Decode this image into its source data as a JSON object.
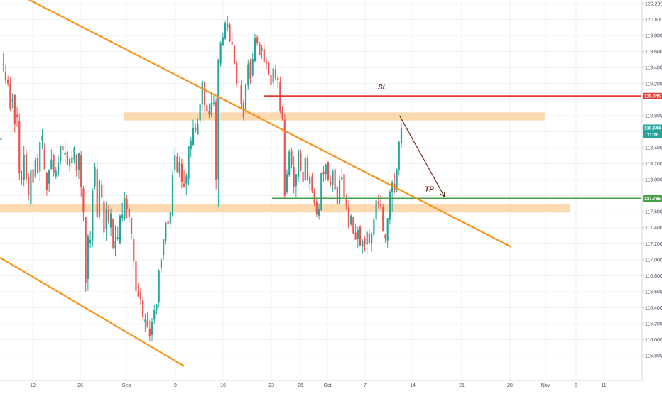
{
  "colors": {
    "background": "#ffffff",
    "grid": "#eef1f5",
    "axis_text": "#4a4f5a",
    "up_candle": "#26a69a",
    "down_candle": "#ef5350",
    "trendline": "#f7931a",
    "zone": "#fcd3a3",
    "sl_line": "#e53935",
    "tp_line": "#43a047",
    "last_price": "#26a69a",
    "arrow": "#6d2b20"
  },
  "chart_data": {
    "type": "candlestick",
    "y_axis": {
      "range": [
        115.7,
        120.2
      ],
      "ticks": [
        "115.800",
        "116.000",
        "116.200",
        "116.400",
        "116.600",
        "116.800",
        "117.000",
        "117.200",
        "117.400",
        "117.600",
        "117.800",
        "118.000",
        "118.200",
        "118.400",
        "118.600",
        "118.800",
        "119.000",
        "119.200",
        "119.400",
        "119.600",
        "119.800",
        "120.000",
        "120.200"
      ]
    },
    "x_axis": {
      "ticks": [
        "19",
        "26",
        "Sep",
        "9",
        "16",
        "23",
        "26",
        "Oct",
        "7",
        "14",
        "21",
        "28",
        "Nov",
        "6",
        "11"
      ]
    },
    "last_price": {
      "value": 118.644,
      "label": "118.644",
      "countdown": "11:28"
    },
    "stop_loss": {
      "value": 119.045,
      "label": "119.045",
      "text": "SL"
    },
    "take_profit": {
      "value": 117.765,
      "label": "117.765",
      "text": "TP"
    },
    "zones": [
      {
        "low": 118.74,
        "high": 118.84
      },
      {
        "low": 117.59,
        "high": 117.69
      }
    ],
    "trendlines": [
      {
        "from": {
          "bar": -20,
          "price": 120.72
        },
        "to": {
          "bar": 223,
          "price": 117.16
        }
      },
      {
        "from": {
          "bar": -6,
          "price": 117.12
        },
        "to": {
          "bar": 80,
          "price": 115.67
        }
      }
    ],
    "projection": {
      "from": {
        "bar": 168,
        "price": 118.8
      },
      "to": {
        "bar": 183,
        "price": 117.76
      }
    },
    "ohlc": [
      [
        118.5,
        118.58,
        118.46,
        118.52
      ],
      [
        119.44,
        119.59,
        119.34,
        119.45
      ],
      [
        119.34,
        119.44,
        119.19,
        119.24
      ],
      [
        119.25,
        119.3,
        119.17,
        119.2
      ],
      [
        119.19,
        119.28,
        118.86,
        118.89
      ],
      [
        118.98,
        119.08,
        118.89,
        119.0
      ],
      [
        119.06,
        119.06,
        118.59,
        118.69
      ],
      [
        118.81,
        118.91,
        118.66,
        118.78
      ],
      [
        118.73,
        118.83,
        117.99,
        118.08
      ],
      [
        118.02,
        118.11,
        117.94,
        118.01
      ],
      [
        118.0,
        118.42,
        117.92,
        118.31
      ],
      [
        118.32,
        118.38,
        117.95,
        118.01
      ],
      [
        118.03,
        118.09,
        117.74,
        117.81
      ],
      [
        117.7,
        118.16,
        117.66,
        118.12
      ],
      [
        118.13,
        118.2,
        117.96,
        117.96
      ],
      [
        118.04,
        118.28,
        118.02,
        118.25
      ],
      [
        118.27,
        118.32,
        118.07,
        118.09
      ],
      [
        118.1,
        118.48,
        117.98,
        118.47
      ],
      [
        118.48,
        118.63,
        118.38,
        118.55
      ],
      [
        118.38,
        118.46,
        118.13,
        118.13
      ],
      [
        118.08,
        118.1,
        117.8,
        117.87
      ],
      [
        117.95,
        118.13,
        117.84,
        118.12
      ],
      [
        118.13,
        118.38,
        118.13,
        118.25
      ],
      [
        118.3,
        118.32,
        118.04,
        118.09
      ],
      [
        118.04,
        118.16,
        118.01,
        118.11
      ],
      [
        118.06,
        118.31,
        118.03,
        118.22
      ],
      [
        118.23,
        118.43,
        118.18,
        118.42
      ],
      [
        118.42,
        118.43,
        118.21,
        118.37
      ],
      [
        118.31,
        118.48,
        118.21,
        118.34
      ],
      [
        118.35,
        118.37,
        118.17,
        118.19
      ],
      [
        118.17,
        118.27,
        118.1,
        118.26
      ],
      [
        118.21,
        118.36,
        118.15,
        118.28
      ],
      [
        118.25,
        118.42,
        118.2,
        118.39
      ],
      [
        118.31,
        118.32,
        118.03,
        118.11
      ],
      [
        118.12,
        118.34,
        118.01,
        118.33
      ],
      [
        118.31,
        118.36,
        117.79,
        117.91
      ],
      [
        117.89,
        117.92,
        117.48,
        117.59
      ],
      [
        117.53,
        117.54,
        116.6,
        116.71
      ],
      [
        116.76,
        117.33,
        116.61,
        117.3
      ],
      [
        117.21,
        117.36,
        117.14,
        117.25
      ],
      [
        117.24,
        117.89,
        117.16,
        117.86
      ],
      [
        117.92,
        118.21,
        117.88,
        118.16
      ],
      [
        118.13,
        118.23,
        117.51,
        117.53
      ],
      [
        117.54,
        118.0,
        117.5,
        117.99
      ],
      [
        117.94,
        118.01,
        117.76,
        117.78
      ],
      [
        117.73,
        117.81,
        117.27,
        117.34
      ],
      [
        117.38,
        117.73,
        117.23,
        117.64
      ],
      [
        117.62,
        117.68,
        117.45,
        117.47
      ],
      [
        117.4,
        117.64,
        117.29,
        117.58
      ],
      [
        117.51,
        117.52,
        117.13,
        117.15
      ],
      [
        117.14,
        117.43,
        117.04,
        117.23
      ],
      [
        117.26,
        117.41,
        117.24,
        117.28
      ],
      [
        117.2,
        117.57,
        117.19,
        117.55
      ],
      [
        117.52,
        117.71,
        117.48,
        117.56
      ],
      [
        117.51,
        117.84,
        117.49,
        117.77
      ],
      [
        117.75,
        117.81,
        117.52,
        117.63
      ],
      [
        117.63,
        117.68,
        117.46,
        117.54
      ],
      [
        117.52,
        117.53,
        117.25,
        117.32
      ],
      [
        117.26,
        117.31,
        116.89,
        116.98
      ],
      [
        116.99,
        117.0,
        116.59,
        116.61
      ],
      [
        116.61,
        116.71,
        116.53,
        116.54
      ],
      [
        116.6,
        116.64,
        116.44,
        116.51
      ],
      [
        116.49,
        116.53,
        116.23,
        116.28
      ],
      [
        116.22,
        116.33,
        116.1,
        116.25
      ],
      [
        116.24,
        116.34,
        116.15,
        116.16
      ],
      [
        116.14,
        116.24,
        115.98,
        116.04
      ],
      [
        116.06,
        116.27,
        115.98,
        116.22
      ],
      [
        116.25,
        116.44,
        116.2,
        116.37
      ],
      [
        116.38,
        116.45,
        116.31,
        116.44
      ],
      [
        116.47,
        116.88,
        116.41,
        116.86
      ],
      [
        116.89,
        117.03,
        116.84,
        117.0
      ],
      [
        117.06,
        117.26,
        117.0,
        117.26
      ],
      [
        117.23,
        117.47,
        117.19,
        117.46
      ],
      [
        117.48,
        117.56,
        117.35,
        117.44
      ],
      [
        117.45,
        117.6,
        117.41,
        117.6
      ],
      [
        117.55,
        118.11,
        117.53,
        118.06
      ],
      [
        118.12,
        118.39,
        118.08,
        118.3
      ],
      [
        118.29,
        118.33,
        118.09,
        118.1
      ],
      [
        118.09,
        118.29,
        118.03,
        118.22
      ],
      [
        118.2,
        118.26,
        117.89,
        117.97
      ],
      [
        117.95,
        118.12,
        117.9,
        117.91
      ],
      [
        117.95,
        118.09,
        117.81,
        118.05
      ],
      [
        118.01,
        118.42,
        117.93,
        118.42
      ],
      [
        118.38,
        118.53,
        118.28,
        118.49
      ],
      [
        118.43,
        118.75,
        118.43,
        118.64
      ],
      [
        118.65,
        118.71,
        118.58,
        118.61
      ],
      [
        118.57,
        118.77,
        118.56,
        118.69
      ],
      [
        118.74,
        118.96,
        118.69,
        118.94
      ],
      [
        118.95,
        119.25,
        118.86,
        119.23
      ],
      [
        119.22,
        119.23,
        118.85,
        118.93
      ],
      [
        118.93,
        118.96,
        118.81,
        118.85
      ],
      [
        118.86,
        118.95,
        118.77,
        118.81
      ],
      [
        118.81,
        119.07,
        118.78,
        118.96
      ],
      [
        118.95,
        119.05,
        118.92,
        118.96
      ],
      [
        118.98,
        119.02,
        117.88,
        118.0
      ],
      [
        118.01,
        119.51,
        117.66,
        119.5
      ],
      [
        119.45,
        119.73,
        119.41,
        119.71
      ],
      [
        119.68,
        119.83,
        119.67,
        119.78
      ],
      [
        119.76,
        119.99,
        119.74,
        119.95
      ],
      [
        119.9,
        120.04,
        119.86,
        119.94
      ],
      [
        119.94,
        119.96,
        119.72,
        119.73
      ],
      [
        119.72,
        119.83,
        119.68,
        119.69
      ],
      [
        119.67,
        119.68,
        119.43,
        119.45
      ],
      [
        119.47,
        119.49,
        119.15,
        119.19
      ],
      [
        119.23,
        119.34,
        119.19,
        119.23
      ],
      [
        119.18,
        119.24,
        118.88,
        118.95
      ],
      [
        118.96,
        119.0,
        118.74,
        118.78
      ],
      [
        118.85,
        119.2,
        118.82,
        119.19
      ],
      [
        119.18,
        119.49,
        119.12,
        119.44
      ],
      [
        119.47,
        119.51,
        119.2,
        119.26
      ],
      [
        119.31,
        119.58,
        119.28,
        119.51
      ],
      [
        119.48,
        119.82,
        119.46,
        119.77
      ],
      [
        119.78,
        119.8,
        119.67,
        119.71
      ],
      [
        119.71,
        119.72,
        119.55,
        119.56
      ],
      [
        119.61,
        119.68,
        119.51,
        119.64
      ],
      [
        119.63,
        119.7,
        119.47,
        119.47
      ],
      [
        119.48,
        119.52,
        119.38,
        119.45
      ],
      [
        119.46,
        119.47,
        119.3,
        119.32
      ],
      [
        119.31,
        119.39,
        119.12,
        119.18
      ],
      [
        119.21,
        119.45,
        119.15,
        119.39
      ],
      [
        119.38,
        119.43,
        119.24,
        119.27
      ],
      [
        119.27,
        119.31,
        119.15,
        119.25
      ],
      [
        119.22,
        119.29,
        118.83,
        118.86
      ],
      [
        118.87,
        118.92,
        118.74,
        118.77
      ],
      [
        118.75,
        118.82,
        117.76,
        117.8
      ],
      [
        117.84,
        118.13,
        117.82,
        118.07
      ],
      [
        118.06,
        118.38,
        118.03,
        118.35
      ],
      [
        118.36,
        118.4,
        118.14,
        118.18
      ],
      [
        118.16,
        118.29,
        117.83,
        117.91
      ],
      [
        117.92,
        118.07,
        117.78,
        118.07
      ],
      [
        118.03,
        118.38,
        117.97,
        118.36
      ],
      [
        118.34,
        118.38,
        118.1,
        118.11
      ],
      [
        118.1,
        118.27,
        117.97,
        117.97
      ],
      [
        118.0,
        118.29,
        117.98,
        118.27
      ],
      [
        118.27,
        118.31,
        117.98,
        118.0
      ],
      [
        117.95,
        118.1,
        117.87,
        118.04
      ],
      [
        118.04,
        118.08,
        117.83,
        117.86
      ],
      [
        117.85,
        117.89,
        117.67,
        117.71
      ],
      [
        117.72,
        117.76,
        117.53,
        117.57
      ],
      [
        117.55,
        117.7,
        117.5,
        117.63
      ],
      [
        117.62,
        118.08,
        117.61,
        118.08
      ],
      [
        118.1,
        118.17,
        117.97,
        118.07
      ],
      [
        118.07,
        118.2,
        117.99,
        118.19
      ],
      [
        118.22,
        118.23,
        117.98,
        118.0
      ],
      [
        117.97,
        118.05,
        117.91,
        117.94
      ],
      [
        117.93,
        118.13,
        117.84,
        118.11
      ],
      [
        118.13,
        118.14,
        117.87,
        117.88
      ],
      [
        117.91,
        117.92,
        117.68,
        117.7
      ],
      [
        117.7,
        118.05,
        117.69,
        117.99
      ],
      [
        118.0,
        118.14,
        117.99,
        118.03
      ],
      [
        118.07,
        118.14,
        117.76,
        117.78
      ],
      [
        117.77,
        117.82,
        117.62,
        117.67
      ],
      [
        117.66,
        117.74,
        117.38,
        117.41
      ],
      [
        117.44,
        117.57,
        117.42,
        117.55
      ],
      [
        117.53,
        117.54,
        117.32,
        117.33
      ],
      [
        117.34,
        117.44,
        117.25,
        117.25
      ],
      [
        117.26,
        117.41,
        117.15,
        117.37
      ],
      [
        117.41,
        117.43,
        117.17,
        117.17
      ],
      [
        117.16,
        117.26,
        117.07,
        117.23
      ],
      [
        117.26,
        117.29,
        117.1,
        117.19
      ],
      [
        117.19,
        117.35,
        117.07,
        117.35
      ],
      [
        117.33,
        117.38,
        117.2,
        117.2
      ],
      [
        117.21,
        117.34,
        117.1,
        117.32
      ],
      [
        117.31,
        117.54,
        117.27,
        117.5
      ],
      [
        117.5,
        117.77,
        117.49,
        117.74
      ],
      [
        117.73,
        117.82,
        117.63,
        117.7
      ],
      [
        117.7,
        117.81,
        117.62,
        117.67
      ],
      [
        117.66,
        117.7,
        117.35,
        117.35
      ],
      [
        117.31,
        117.33,
        117.21,
        117.27
      ],
      [
        117.24,
        117.52,
        117.15,
        117.52
      ],
      [
        117.5,
        117.88,
        117.45,
        117.85
      ],
      [
        117.84,
        118.0,
        117.6,
        117.96
      ],
      [
        117.95,
        118.08,
        117.83,
        117.87
      ],
      [
        117.87,
        118.14,
        117.85,
        118.13
      ],
      [
        118.12,
        118.49,
        118.05,
        118.47
      ],
      [
        118.46,
        118.69,
        118.4,
        118.64
      ]
    ]
  }
}
